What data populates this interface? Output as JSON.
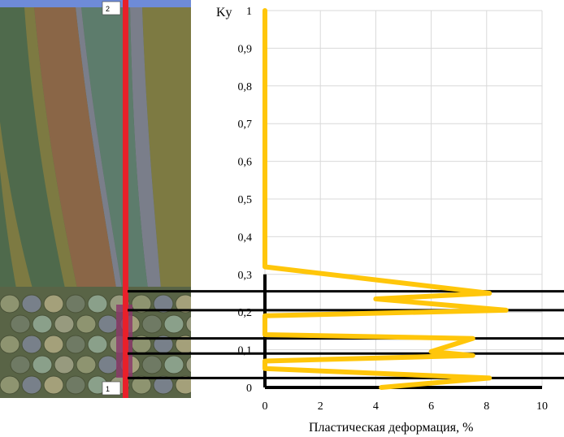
{
  "left_panel": {
    "top_marker": "2",
    "bottom_marker": "1",
    "colors": {
      "background": "#4f6a4c",
      "band_olive": "#7d7a42",
      "band_brown": "#8a6647",
      "band_teal": "#5d7c6c",
      "band_grey": "#7a7e8a",
      "ground": "#596446",
      "red_line": "#e8202a",
      "top_strip": "#6e8bd8"
    }
  },
  "chart_data": {
    "type": "line",
    "xlabel": "Пластическая деформация, %",
    "ylabel": "Ky",
    "xlim": [
      0,
      10
    ],
    "ylim": [
      0,
      1
    ],
    "x_ticks": [
      "0",
      "2",
      "4",
      "6",
      "8",
      "10"
    ],
    "y_ticks": [
      "0",
      "0,1",
      "0,2",
      "0,3",
      "0,4",
      "0,5",
      "0,6",
      "0,7",
      "0,8",
      "0,9",
      "1"
    ],
    "grid": true,
    "series": [
      {
        "color": "#ffc60a",
        "points": [
          [
            0,
            1.0
          ],
          [
            0,
            0.32
          ],
          [
            8.1,
            0.25
          ],
          [
            4.0,
            0.235
          ],
          [
            8.7,
            0.205
          ],
          [
            0,
            0.19
          ],
          [
            0,
            0.14
          ],
          [
            7.5,
            0.13
          ],
          [
            6.0,
            0.095
          ],
          [
            7.5,
            0.085
          ],
          [
            0,
            0.07
          ],
          [
            0,
            0.05
          ],
          [
            8.1,
            0.025
          ],
          [
            4.2,
            0.0
          ]
        ]
      }
    ],
    "reference_lines_y": [
      0.255,
      0.205,
      0.13,
      0.09,
      0.025
    ]
  }
}
